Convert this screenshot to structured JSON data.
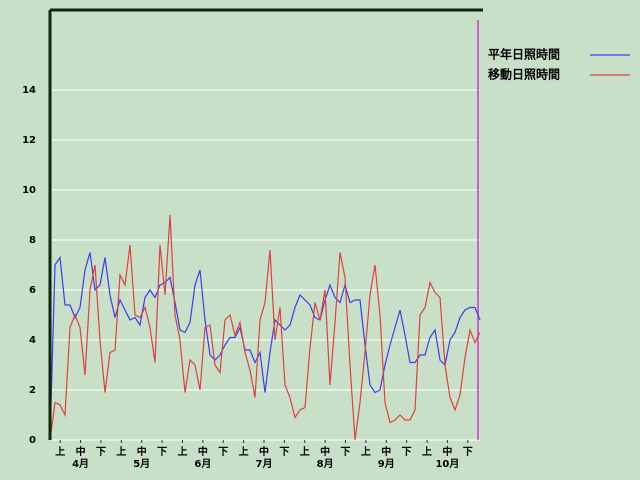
{
  "chart_data": {
    "type": "line",
    "ylim": [
      0,
      17.2
    ],
    "yticks": [
      0,
      2,
      4,
      6,
      8,
      10,
      12,
      14
    ],
    "grid": true,
    "legend": "right",
    "months": [
      "4月",
      "5月",
      "6月",
      "7月",
      "8月",
      "9月",
      "10月"
    ],
    "periods": [
      "上",
      "中",
      "下",
      "上",
      "中",
      "下",
      "上",
      "中",
      "下",
      "上",
      "中",
      "下",
      "上",
      "中",
      "下",
      "上",
      "中",
      "下",
      "上",
      "中",
      "下"
    ],
    "series": [
      {
        "name": "平年日照時間",
        "color": "#3c3cf0",
        "values": [
          0,
          7.0,
          7.3,
          5.4,
          5.4,
          4.9,
          5.3,
          6.8,
          7.5,
          6.0,
          6.2,
          7.3,
          5.8,
          4.9,
          5.6,
          5.2,
          4.8,
          4.9,
          4.6,
          5.7,
          6.0,
          5.7,
          6.2,
          6.3,
          6.5,
          5.5,
          4.4,
          4.3,
          4.7,
          6.2,
          6.8,
          4.8,
          3.4,
          3.2,
          3.4,
          3.8,
          4.1,
          4.1,
          4.5,
          3.6,
          3.6,
          3.1,
          3.5,
          1.9,
          3.5,
          4.8,
          4.6,
          4.4,
          4.6,
          5.3,
          5.8,
          5.6,
          5.4,
          4.9,
          4.8,
          5.6,
          6.2,
          5.7,
          5.5,
          6.2,
          5.5,
          5.6,
          5.6,
          3.8,
          2.2,
          1.9,
          2.0,
          3.0,
          3.8,
          4.5,
          5.2,
          4.2,
          3.1,
          3.1,
          3.4,
          3.4,
          4.1,
          4.4,
          3.2,
          3.0,
          4.0,
          4.3,
          4.9,
          5.2,
          5.3,
          5.3,
          4.8
        ]
      },
      {
        "name": "移動日照時間",
        "color": "#e0403c",
        "values": [
          0,
          1.5,
          1.4,
          1.0,
          4.5,
          5.0,
          4.5,
          2.6,
          6.0,
          7.0,
          4.0,
          1.9,
          3.5,
          3.6,
          6.6,
          6.2,
          7.8,
          5.0,
          4.9,
          5.3,
          4.5,
          3.1,
          7.8,
          5.8,
          9.0,
          5.0,
          4.0,
          1.9,
          3.2,
          3.0,
          2.0,
          4.5,
          4.6,
          3.0,
          2.7,
          4.8,
          5.0,
          4.2,
          4.7,
          3.5,
          2.8,
          1.7,
          4.8,
          5.5,
          7.6,
          4.0,
          5.3,
          2.2,
          1.7,
          0.9,
          1.2,
          1.3,
          3.7,
          5.5,
          4.8,
          6.0,
          2.2,
          4.7,
          7.5,
          6.5,
          3.0,
          0.0,
          1.5,
          3.5,
          5.8,
          7.0,
          5.0,
          1.5,
          0.7,
          0.8,
          1.0,
          0.8,
          0.8,
          1.2,
          5.0,
          5.3,
          6.3,
          5.9,
          5.7,
          3.0,
          1.7,
          1.2,
          1.8,
          3.3,
          4.4,
          3.9,
          4.3
        ]
      }
    ]
  }
}
